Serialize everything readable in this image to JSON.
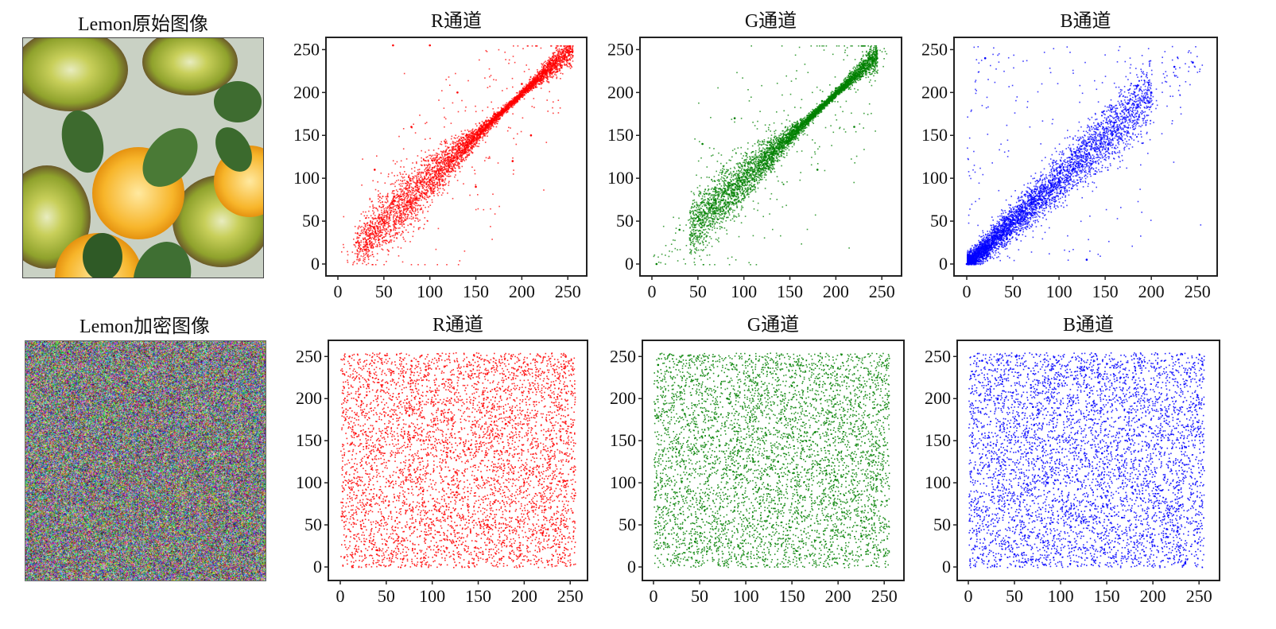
{
  "images": {
    "original_caption": "Lemon原始图像",
    "encrypted_caption": "Lemon加密图像"
  },
  "chart_data": [
    {
      "type": "scatter",
      "row": "original",
      "channel": "R",
      "title": "R通道",
      "color": "#ff0000",
      "xlim": [
        0,
        255
      ],
      "ylim": [
        0,
        255
      ],
      "xticks": [
        0,
        50,
        100,
        150,
        200,
        250
      ],
      "yticks": [
        0,
        50,
        100,
        150,
        200,
        250
      ],
      "distribution": "correlated",
      "points": [
        [
          20,
          25
        ],
        [
          35,
          45
        ],
        [
          50,
          48
        ],
        [
          60,
          70
        ],
        [
          75,
          72
        ],
        [
          90,
          95
        ],
        [
          100,
          98
        ],
        [
          110,
          118
        ],
        [
          125,
          120
        ],
        [
          140,
          150
        ],
        [
          155,
          152
        ],
        [
          170,
          175
        ],
        [
          185,
          182
        ],
        [
          200,
          210
        ],
        [
          215,
          212
        ],
        [
          230,
          235
        ],
        [
          245,
          248
        ],
        [
          40,
          110
        ],
        [
          80,
          160
        ],
        [
          130,
          200
        ],
        [
          150,
          90
        ],
        [
          190,
          120
        ],
        [
          210,
          150
        ],
        [
          60,
          255
        ],
        [
          100,
          255
        ]
      ]
    },
    {
      "type": "scatter",
      "row": "original",
      "channel": "G",
      "title": "G通道",
      "color": "#008000",
      "xlim": [
        0,
        255
      ],
      "ylim": [
        0,
        255
      ],
      "xticks": [
        0,
        50,
        100,
        150,
        200,
        250
      ],
      "yticks": [
        0,
        50,
        100,
        150,
        200,
        250
      ],
      "distribution": "correlated",
      "points": [
        [
          5,
          0
        ],
        [
          30,
          40
        ],
        [
          50,
          55
        ],
        [
          65,
          68
        ],
        [
          80,
          85
        ],
        [
          95,
          100
        ],
        [
          110,
          108
        ],
        [
          125,
          130
        ],
        [
          140,
          142
        ],
        [
          155,
          160
        ],
        [
          170,
          168
        ],
        [
          185,
          190
        ],
        [
          200,
          205
        ],
        [
          215,
          222
        ],
        [
          230,
          230
        ],
        [
          245,
          240
        ],
        [
          55,
          140
        ],
        [
          90,
          170
        ],
        [
          180,
          110
        ],
        [
          220,
          160
        ]
      ]
    },
    {
      "type": "scatter",
      "row": "original",
      "channel": "B",
      "title": "B通道",
      "color": "#0000ff",
      "xlim": [
        0,
        255
      ],
      "ylim": [
        0,
        255
      ],
      "xticks": [
        0,
        50,
        100,
        150,
        200,
        250
      ],
      "yticks": [
        0,
        50,
        100,
        150,
        200,
        250
      ],
      "distribution": "correlated-low",
      "points": [
        [
          0,
          0
        ],
        [
          10,
          12
        ],
        [
          25,
          20
        ],
        [
          40,
          35
        ],
        [
          55,
          50
        ],
        [
          70,
          72
        ],
        [
          85,
          88
        ],
        [
          100,
          98
        ],
        [
          115,
          110
        ],
        [
          130,
          128
        ],
        [
          145,
          140
        ],
        [
          160,
          165
        ],
        [
          175,
          180
        ],
        [
          200,
          200
        ],
        [
          225,
          230
        ],
        [
          245,
          235
        ],
        [
          20,
          240
        ],
        [
          130,
          5
        ]
      ]
    },
    {
      "type": "scatter",
      "row": "encrypted",
      "channel": "R",
      "title": "R通道",
      "color": "#ff0000",
      "xlim": [
        0,
        255
      ],
      "ylim": [
        0,
        255
      ],
      "xticks": [
        0,
        50,
        100,
        150,
        200,
        250
      ],
      "yticks": [
        0,
        50,
        100,
        150,
        200,
        250
      ],
      "distribution": "uniform",
      "points": [
        [
          10,
          250
        ],
        [
          40,
          20
        ],
        [
          75,
          180
        ],
        [
          120,
          60
        ],
        [
          160,
          230
        ],
        [
          200,
          100
        ],
        [
          240,
          10
        ],
        [
          30,
          130
        ],
        [
          90,
          90
        ],
        [
          180,
          170
        ],
        [
          220,
          40
        ],
        [
          140,
          140
        ]
      ]
    },
    {
      "type": "scatter",
      "row": "encrypted",
      "channel": "G",
      "title": "G通道",
      "color": "#008000",
      "xlim": [
        0,
        255
      ],
      "ylim": [
        0,
        255
      ],
      "xticks": [
        0,
        50,
        100,
        150,
        200,
        250
      ],
      "yticks": [
        0,
        50,
        100,
        150,
        200,
        250
      ],
      "distribution": "uniform",
      "points": [
        [
          5,
          240
        ],
        [
          45,
          30
        ],
        [
          80,
          200
        ],
        [
          115,
          75
        ],
        [
          150,
          215
        ],
        [
          195,
          85
        ],
        [
          245,
          20
        ],
        [
          25,
          140
        ],
        [
          95,
          110
        ],
        [
          175,
          160
        ],
        [
          225,
          55
        ],
        [
          135,
          125
        ]
      ]
    },
    {
      "type": "scatter",
      "row": "encrypted",
      "channel": "B",
      "title": "B通道",
      "color": "#0000ff",
      "xlim": [
        0,
        255
      ],
      "ylim": [
        0,
        255
      ],
      "xticks": [
        0,
        50,
        100,
        150,
        200,
        250
      ],
      "yticks": [
        0,
        50,
        100,
        150,
        200,
        250
      ],
      "distribution": "uniform",
      "points": [
        [
          15,
          245
        ],
        [
          50,
          15
        ],
        [
          70,
          190
        ],
        [
          125,
          55
        ],
        [
          165,
          225
        ],
        [
          205,
          95
        ],
        [
          235,
          5
        ],
        [
          35,
          120
        ],
        [
          85,
          100
        ],
        [
          185,
          175
        ],
        [
          215,
          45
        ],
        [
          145,
          135
        ]
      ]
    }
  ]
}
